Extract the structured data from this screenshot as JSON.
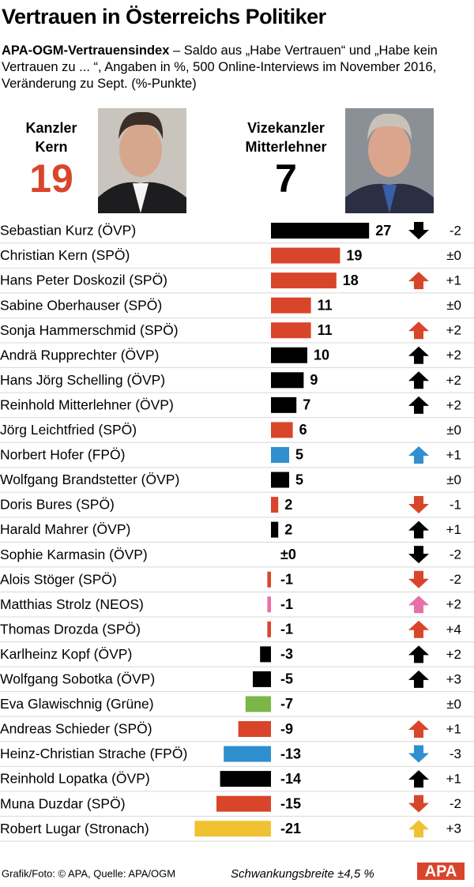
{
  "header": {
    "title": "Vertrauen in Österreichs Politiker",
    "subtitle_bold": "APA-OGM-Vertrauensindex",
    "subtitle": " – Saldo aus „Habe Vertrauen“ und „Habe kein Vertrauen zu ... “, Angaben in %, 500 Online-Interviews im November 2016, Veränderung zu Sept. (%-Punkte)"
  },
  "featured": [
    {
      "title": "Kanzler",
      "name": "Kern",
      "value": 19,
      "color": "#d9452b"
    },
    {
      "title": "Vizekanzler",
      "name": "Mitterlehner",
      "value": 7,
      "color": "#000000"
    }
  ],
  "chart_data": {
    "type": "bar",
    "categories": [
      "Sebastian Kurz (ÖVP)",
      "Christian Kern (SPÖ)",
      "Hans Peter Doskozil (SPÖ)",
      "Sabine Oberhauser (SPÖ)",
      "Sonja Hammerschmid (SPÖ)",
      "Andrä Rupprechter (ÖVP)",
      "Hans Jörg Schelling (ÖVP)",
      "Reinhold Mitterlehner (ÖVP)",
      "Jörg Leichtfried (SPÖ)",
      "Norbert Hofer (FPÖ)",
      "Wolfgang Brandstetter (ÖVP)",
      "Doris Bures (SPÖ)",
      "Harald Mahrer (ÖVP)",
      "Sophie Karmasin (ÖVP)",
      "Alois Stöger (SPÖ)",
      "Matthias Strolz (NEOS)",
      "Thomas Drozda (SPÖ)",
      "Karlheinz Kopf (ÖVP)",
      "Wolfgang Sobotka (ÖVP)",
      "Eva Glawischnig (Grüne)",
      "Andreas Schieder (SPÖ)",
      "Heinz-Christian Strache (FPÖ)",
      "Reinhold Lopatka (ÖVP)",
      "Muna Duzdar (SPÖ)",
      "Robert Lugar (Stronach)"
    ],
    "values": [
      27,
      19,
      18,
      11,
      11,
      10,
      9,
      7,
      6,
      5,
      5,
      2,
      2,
      0,
      -1,
      -1,
      -1,
      -3,
      -5,
      -7,
      -9,
      -13,
      -14,
      -15,
      -21
    ],
    "value_labels": [
      "27",
      "19",
      "18",
      "11",
      "11",
      "10",
      "9",
      "7",
      "6",
      "5",
      "5",
      "2",
      "2",
      "±0",
      "-1",
      "-1",
      "-1",
      "-3",
      "-5",
      "-7",
      "-9",
      "-13",
      "-14",
      "-15",
      "-21"
    ],
    "changes": [
      -2,
      0,
      1,
      0,
      2,
      2,
      2,
      2,
      0,
      1,
      0,
      -1,
      1,
      -2,
      -2,
      2,
      4,
      2,
      3,
      0,
      1,
      -3,
      1,
      -2,
      3
    ],
    "change_labels": [
      "-2",
      "±0",
      "+1",
      "±0",
      "+2",
      "+2",
      "+2",
      "+2",
      "±0",
      "+1",
      "±0",
      "-1",
      "+1",
      "-2",
      "-2",
      "+2",
      "+4",
      "+2",
      "+3",
      "±0",
      "+1",
      "-3",
      "+1",
      "-2",
      "+3"
    ],
    "colors": [
      "#000000",
      "#d9452b",
      "#d9452b",
      "#d9452b",
      "#d9452b",
      "#000000",
      "#000000",
      "#000000",
      "#d9452b",
      "#2f8fcf",
      "#000000",
      "#d9452b",
      "#000000",
      "#000000",
      "#d9452b",
      "#e96fa8",
      "#d9452b",
      "#000000",
      "#000000",
      "#7ab648",
      "#d9452b",
      "#2f8fcf",
      "#000000",
      "#d9452b",
      "#f0c232"
    ]
  },
  "footer": {
    "source": "Grafik/Foto: © APA, Quelle: APA/OGM",
    "margin": "Schwankungsbreite ±4,5 %",
    "logo": "APA"
  }
}
